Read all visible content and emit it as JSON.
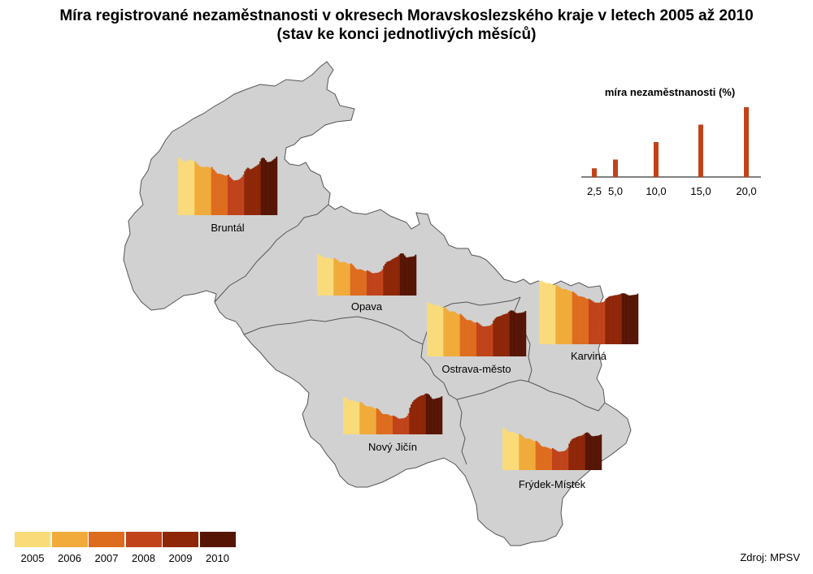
{
  "title": {
    "line1": "Míra registrované nezaměstnanosti v okresech Moravskoslezského kraje v letech 2005 až 2010",
    "line2": "(stav ke konci jednotlivých měsíců)"
  },
  "years": [
    "2005",
    "2006",
    "2007",
    "2008",
    "2009",
    "2010"
  ],
  "year_colors": [
    "#f9db7a",
    "#f0ab3a",
    "#de6c1e",
    "#c0431a",
    "#8e2608",
    "#561504"
  ],
  "map_fill": "#d1d1d1",
  "border_color": "#555555",
  "scale": {
    "title": "míra nezaměstnanosti (%)",
    "values": [
      2.5,
      5.0,
      10.0,
      15.0,
      20.0
    ],
    "labels": [
      "2,5",
      "5,0",
      "10,0",
      "15,0",
      "20,0"
    ],
    "bar_color": "#c0431a"
  },
  "districts": [
    {
      "name": "Bruntál",
      "values": [
        16.5,
        16.2,
        15.8,
        15.5,
        15.3,
        15.6,
        15.5,
        15.6,
        15.8,
        16.0,
        15.6,
        15.4,
        15.4,
        14.9,
        14.5,
        14.0,
        13.8,
        13.9,
        13.8,
        13.7,
        13.9,
        13.8,
        13.7,
        13.6,
        13.8,
        13.2,
        12.8,
        12.3,
        11.9,
        11.9,
        11.8,
        11.7,
        11.6,
        11.4,
        11.3,
        11.4,
        11.6,
        11.0,
        10.6,
        10.2,
        9.9,
        10.0,
        10.0,
        10.1,
        10.3,
        10.6,
        11.0,
        11.6,
        12.6,
        13.2,
        13.6,
        13.4,
        13.1,
        13.3,
        13.5,
        13.8,
        14.0,
        14.3,
        14.6,
        15.4,
        16.2,
        16.5,
        16.3,
        15.8,
        15.3,
        15.2,
        15.3,
        15.4,
        15.7,
        16.0,
        16.3,
        16.8
      ]
    },
    {
      "name": "Opava",
      "values": [
        11.8,
        11.7,
        11.5,
        11.2,
        10.9,
        10.8,
        10.8,
        10.9,
        10.8,
        10.6,
        10.3,
        10.4,
        10.7,
        10.5,
        10.3,
        9.9,
        9.6,
        9.5,
        9.6,
        9.6,
        9.5,
        9.3,
        9.0,
        9.0,
        9.2,
        8.9,
        8.5,
        8.0,
        7.6,
        7.5,
        7.5,
        7.5,
        7.4,
        7.2,
        7.0,
        7.0,
        7.2,
        7.0,
        6.8,
        6.5,
        6.4,
        6.4,
        6.5,
        6.5,
        6.6,
        6.8,
        7.0,
        7.5,
        8.5,
        9.1,
        9.6,
        9.8,
        9.9,
        10.1,
        10.4,
        10.6,
        10.8,
        11.0,
        11.2,
        11.6,
        12.0,
        12.1,
        12.0,
        11.5,
        11.0,
        10.9,
        11.0,
        11.1,
        11.1,
        11.2,
        11.3,
        11.7
      ]
    },
    {
      "name": "Ostrava-město",
      "values": [
        15.4,
        15.3,
        15.2,
        15.0,
        14.8,
        14.7,
        14.7,
        14.8,
        14.6,
        14.3,
        14.0,
        14.1,
        14.1,
        13.9,
        13.6,
        13.2,
        12.9,
        12.8,
        12.9,
        12.9,
        12.7,
        12.4,
        12.1,
        12.1,
        12.2,
        11.8,
        11.4,
        11.0,
        10.6,
        10.4,
        10.4,
        10.4,
        10.2,
        9.9,
        9.7,
        9.7,
        9.8,
        9.5,
        9.2,
        8.9,
        8.6,
        8.6,
        8.6,
        8.7,
        8.7,
        8.8,
        9.0,
        9.4,
        10.3,
        10.8,
        11.2,
        11.4,
        11.5,
        11.6,
        11.8,
        12.0,
        12.1,
        12.2,
        12.4,
        12.8,
        13.1,
        13.2,
        13.1,
        12.8,
        12.5,
        12.4,
        12.4,
        12.5,
        12.5,
        12.6,
        12.7,
        13.0
      ]
    },
    {
      "name": "Karviná",
      "values": [
        18.2,
        18.1,
        18.0,
        17.8,
        17.6,
        17.5,
        17.5,
        17.5,
        17.4,
        17.2,
        16.9,
        17.0,
        16.9,
        16.7,
        16.5,
        16.2,
        15.9,
        15.8,
        15.8,
        15.8,
        15.6,
        15.4,
        15.2,
        15.1,
        15.1,
        14.8,
        14.5,
        14.1,
        13.8,
        13.7,
        13.7,
        13.6,
        13.5,
        13.3,
        13.0,
        13.0,
        13.0,
        12.7,
        12.5,
        12.2,
        12.0,
        11.9,
        11.9,
        11.9,
        11.9,
        12.0,
        12.1,
        12.4,
        13.0,
        13.3,
        13.6,
        13.8,
        13.8,
        13.9,
        14.0,
        14.1,
        14.1,
        14.2,
        14.3,
        14.5,
        14.6,
        14.6,
        14.5,
        14.3,
        14.1,
        14.0,
        14.0,
        14.1,
        14.1,
        14.2,
        14.2,
        14.5
      ]
    },
    {
      "name": "Nový Jičín",
      "values": [
        10.7,
        10.6,
        10.3,
        10.0,
        9.7,
        9.6,
        9.6,
        9.7,
        9.6,
        9.4,
        9.1,
        9.2,
        9.3,
        9.1,
        8.8,
        8.4,
        8.1,
        8.0,
        8.0,
        8.0,
        7.9,
        7.7,
        7.4,
        7.4,
        7.5,
        7.2,
        6.8,
        6.3,
        5.9,
        5.8,
        5.8,
        5.8,
        5.7,
        5.5,
        5.3,
        5.3,
        5.4,
        5.2,
        5.0,
        4.7,
        4.5,
        4.5,
        4.6,
        4.6,
        4.7,
        4.9,
        5.3,
        6.0,
        7.6,
        8.6,
        9.3,
        9.8,
        10.1,
        10.4,
        10.7,
        10.9,
        11.1,
        11.2,
        11.3,
        11.6,
        11.7,
        11.6,
        11.3,
        10.8,
        10.3,
        10.1,
        10.2,
        10.3,
        10.4,
        10.5,
        10.6,
        10.9
      ]
    },
    {
      "name": "Frýdek-Místek",
      "values": [
        12.1,
        12.0,
        11.7,
        11.3,
        11.0,
        10.9,
        10.9,
        10.9,
        10.8,
        10.5,
        10.2,
        10.2,
        10.4,
        10.1,
        9.8,
        9.4,
        9.1,
        9.0,
        9.0,
        9.0,
        8.9,
        8.6,
        8.3,
        8.3,
        8.4,
        8.1,
        7.7,
        7.2,
        6.8,
        6.7,
        6.7,
        6.6,
        6.5,
        6.3,
        6.1,
        6.1,
        6.3,
        6.0,
        5.8,
        5.5,
        5.3,
        5.3,
        5.3,
        5.4,
        5.4,
        5.6,
        5.9,
        6.4,
        7.6,
        8.3,
        8.8,
        9.1,
        9.2,
        9.4,
        9.6,
        9.7,
        9.8,
        9.9,
        10.1,
        10.4,
        10.7,
        10.8,
        10.6,
        10.2,
        9.8,
        9.7,
        9.7,
        9.8,
        9.8,
        9.9,
        10.0,
        10.2
      ]
    }
  ],
  "legend": {
    "labels": [
      "2005",
      "2006",
      "2007",
      "2008",
      "2009",
      "2010"
    ]
  },
  "source": "Zdroj: MPSV"
}
